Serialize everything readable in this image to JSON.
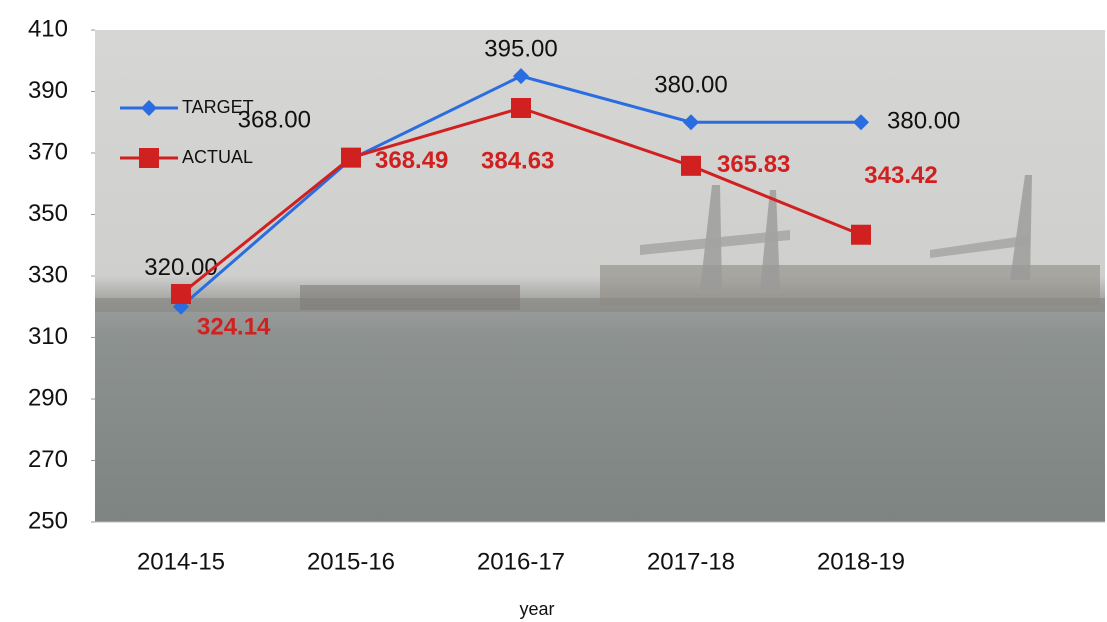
{
  "chart_data": {
    "type": "line",
    "x_label": "year",
    "categories": [
      "2014-15",
      "2015-16",
      "2016-17",
      "2017-18",
      "2018-19"
    ],
    "series": [
      {
        "name": "TARGET",
        "color": "#2a6de0",
        "marker": "diamond",
        "values": [
          320,
          368,
          395,
          380,
          380
        ],
        "value_labels": [
          "320.00",
          "368.00",
          "395.00",
          "380.00",
          "380.00"
        ]
      },
      {
        "name": "ACTUAL",
        "color": "#d02020",
        "marker": "square",
        "values": [
          324.14,
          368.49,
          384.63,
          365.83,
          343.42
        ]
      }
    ],
    "ylim": [
      250,
      410
    ],
    "yticks": [
      250,
      270,
      290,
      310,
      330,
      350,
      370,
      390,
      410
    ],
    "legend": "top-left"
  }
}
